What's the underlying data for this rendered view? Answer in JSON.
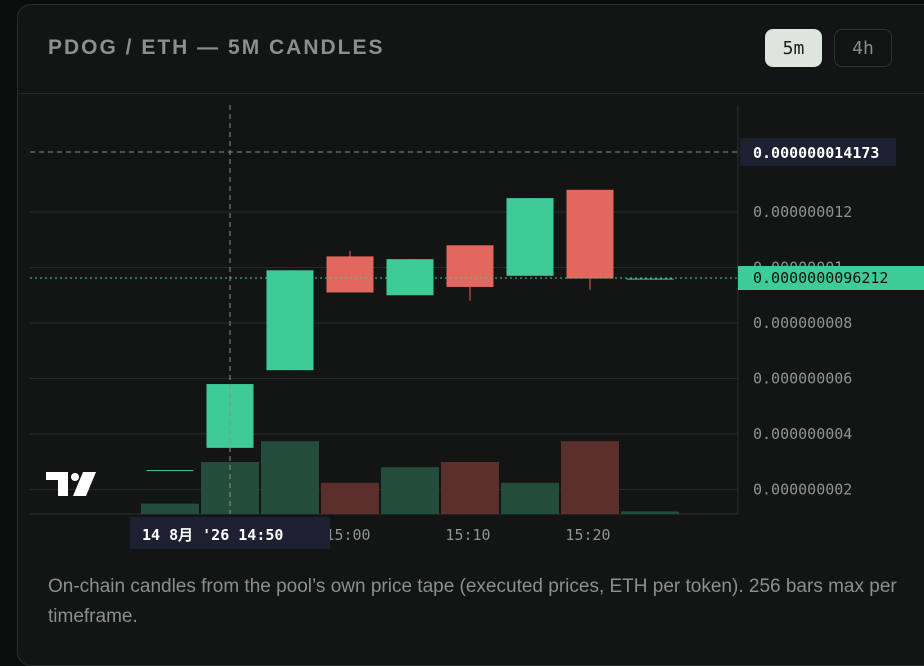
{
  "header": {
    "title": "PDOG / ETH — 5M CANDLES",
    "timeframes": [
      {
        "label": "5m",
        "active": true
      },
      {
        "label": "4h",
        "active": false
      }
    ]
  },
  "chart_data": {
    "type": "candlestick",
    "y_ticks": [
      "0.000000002",
      "0.000000004",
      "0.000000006",
      "0.000000008",
      "0.00000001",
      "0.000000012"
    ],
    "x_ticks": [
      "15:00",
      "15:10",
      "15:20"
    ],
    "crosshair_price_label": "0.000000014173",
    "last_price_label": "0.0000000096212",
    "crosshair_time_label": "14 8月 '26   14:50",
    "colors": {
      "up": "#3ecb98",
      "down": "#e2675e",
      "up_vol": "#234c3d",
      "down_vol": "#5a2f2c",
      "grid": "#252a28",
      "axis_text": "#8e948f"
    },
    "candles": [
      {
        "time": "14:40",
        "open": 2.7e-09,
        "close": 2.7e-09,
        "high": 2.7e-09,
        "low": 2.7e-09,
        "volume": 0.2
      },
      {
        "time": "14:45",
        "open": 3.5e-09,
        "close": 5.8e-09,
        "high": 5.8e-09,
        "low": 3.5e-09,
        "volume": 1.0
      },
      {
        "time": "14:50",
        "open": 6.3e-09,
        "close": 9.9e-09,
        "high": 9.9e-09,
        "low": 6.3e-09,
        "volume": 1.4
      },
      {
        "time": "14:55",
        "open": 1.04e-08,
        "close": 9.1e-09,
        "high": 1.06e-08,
        "low": 9.1e-09,
        "volume": 0.6
      },
      {
        "time": "15:00",
        "open": 9e-09,
        "close": 1.03e-08,
        "high": 1.03e-08,
        "low": 9e-09,
        "volume": 0.9
      },
      {
        "time": "15:05",
        "open": 1.08e-08,
        "close": 9.3e-09,
        "high": 1.08e-08,
        "low": 8.8e-09,
        "volume": 1.0
      },
      {
        "time": "15:10",
        "open": 9.7e-09,
        "close": 1.25e-08,
        "high": 1.25e-08,
        "low": 9.7e-09,
        "volume": 0.6
      },
      {
        "time": "15:15",
        "open": 1.28e-08,
        "close": 9.6e-09,
        "high": 1.28e-08,
        "low": 9.2e-09,
        "volume": 1.4
      },
      {
        "time": "15:20",
        "open": 9.6e-09,
        "close": 9.6e-09,
        "high": 9.6e-09,
        "low": 9.6e-09,
        "volume": 0.05
      }
    ]
  },
  "footnote": {
    "text": "On-chain candles from the pool’s own price tape (executed prices, ETH per token). 256 bars max per timeframe."
  }
}
